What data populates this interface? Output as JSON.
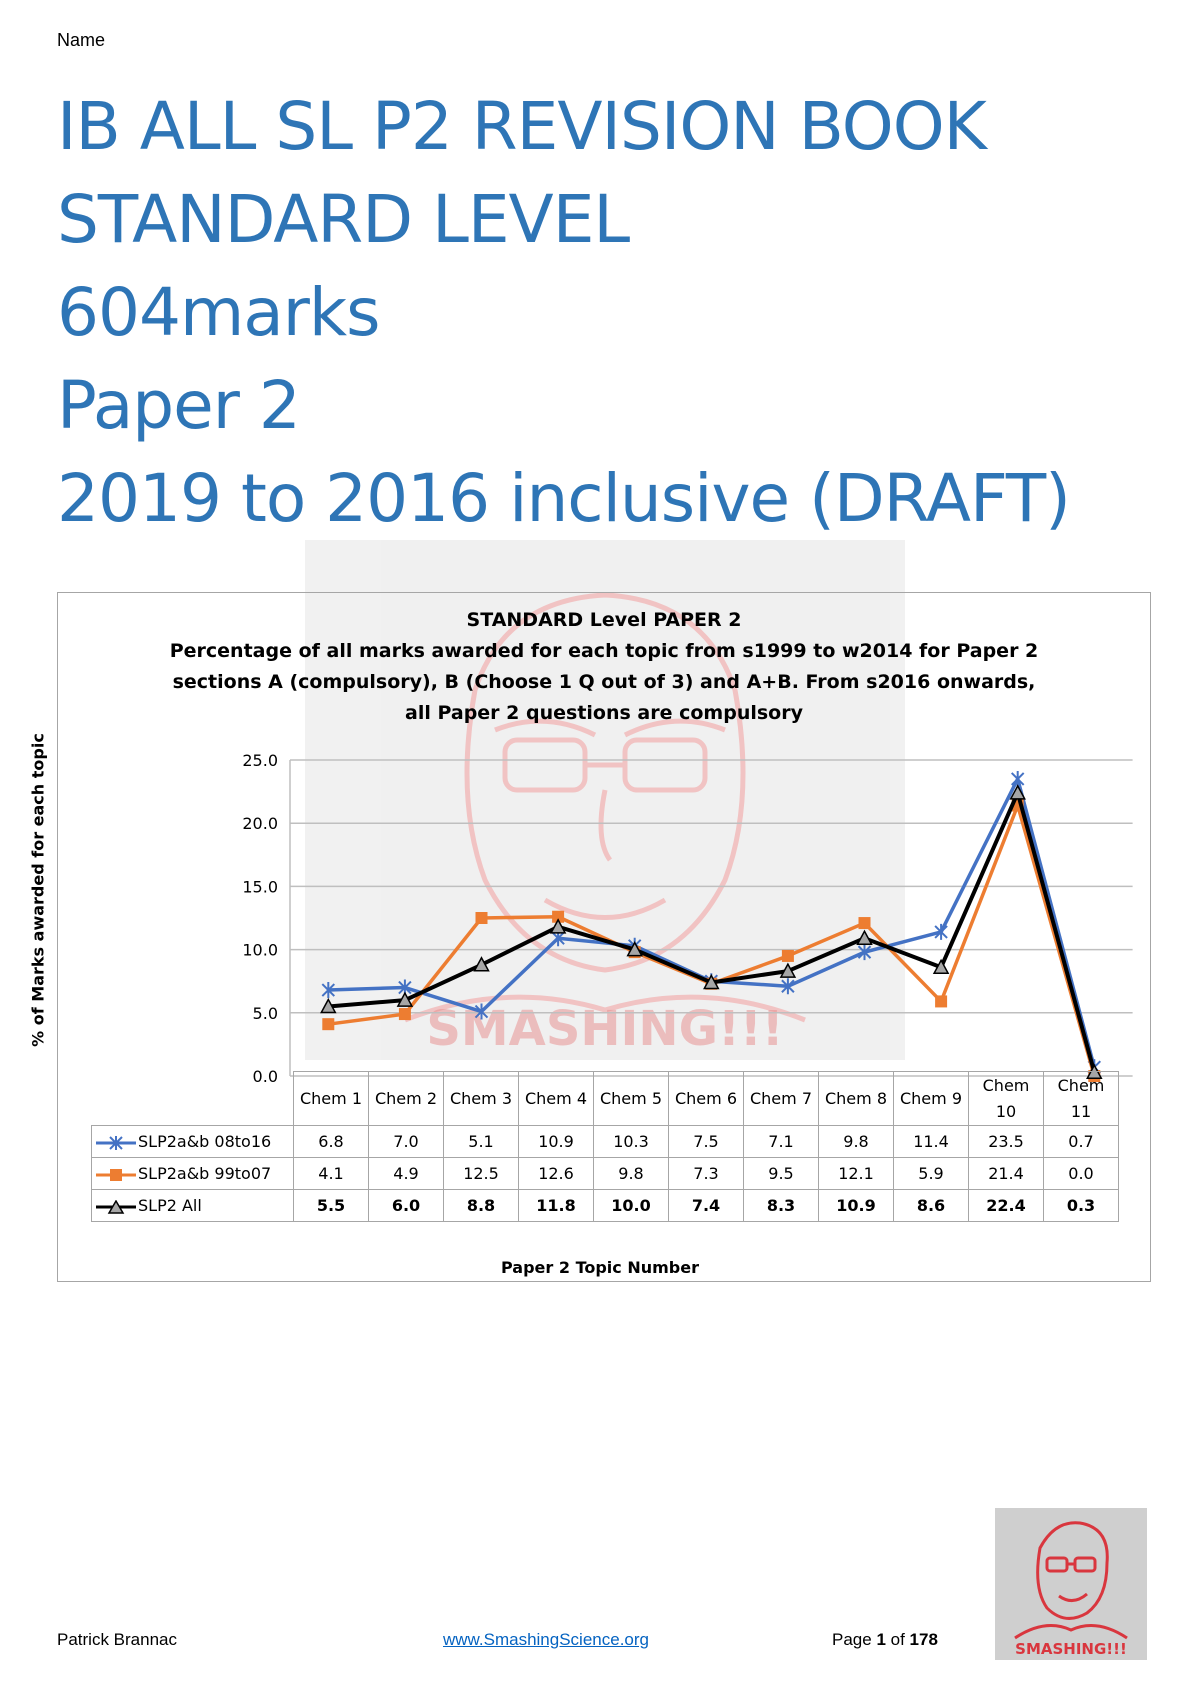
{
  "header": {
    "name_label": "Name"
  },
  "title_lines": [
    "IB ALL SL P2 REVISION BOOK",
    "STANDARD LEVEL",
    "604marks",
    "Paper 2",
    "2019 to 2016 inclusive (DRAFT)"
  ],
  "chart_data": {
    "type": "line",
    "title": "STANDARD Level PAPER 2",
    "subtitle_lines": [
      "Percentage of all marks awarded for each topic from s1999 to w2014 for Paper 2",
      "sections A (compulsory), B (Choose 1 Q out of 3) and A+B. From s2016 onwards,",
      "all Paper 2 questions are compulsory"
    ],
    "xlabel": "Paper 2 Topic Number",
    "ylabel": "% of Marks awarded for each topic",
    "ylim": [
      0,
      25
    ],
    "yticks": [
      "0.0",
      "5.0",
      "10.0",
      "15.0",
      "20.0",
      "25.0"
    ],
    "grid": true,
    "categories": [
      [
        "Chem 1"
      ],
      [
        "Chem 2"
      ],
      [
        "Chem 3"
      ],
      [
        "Chem 4"
      ],
      [
        "Chem 5"
      ],
      [
        "Chem 6"
      ],
      [
        "Chem 7"
      ],
      [
        "Chem 8"
      ],
      [
        "Chem 9"
      ],
      [
        "Chem",
        "10"
      ],
      [
        "Chem",
        "11"
      ]
    ],
    "series": [
      {
        "name": "SLP2a&b 08to16",
        "color": "#4472c4",
        "marker": "star",
        "values": [
          6.8,
          7.0,
          5.1,
          10.9,
          10.3,
          7.5,
          7.1,
          9.8,
          11.4,
          23.5,
          0.7
        ],
        "labels": [
          "6.8",
          "7.0",
          "5.1",
          "10.9",
          "10.3",
          "7.5",
          "7.1",
          "9.8",
          "11.4",
          "23.5",
          "0.7"
        ]
      },
      {
        "name": "SLP2a&b 99to07",
        "color": "#ed7d31",
        "marker": "square",
        "values": [
          4.1,
          4.9,
          12.5,
          12.6,
          9.8,
          7.3,
          9.5,
          12.1,
          5.9,
          21.4,
          0.0
        ],
        "labels": [
          "4.1",
          "4.9",
          "12.5",
          "12.6",
          "9.8",
          "7.3",
          "9.5",
          "12.1",
          "5.9",
          "21.4",
          "0.0"
        ]
      },
      {
        "name": "SLP2 All",
        "color": "#000000",
        "marker": "triangle",
        "values": [
          5.5,
          6.0,
          8.8,
          11.8,
          10.0,
          7.4,
          8.3,
          10.9,
          8.6,
          22.4,
          0.3
        ],
        "labels": [
          "5.5",
          "6.0",
          "8.8",
          "11.8",
          "10.0",
          "7.4",
          "8.3",
          "10.9",
          "8.6",
          "22.4",
          "0.3"
        ]
      }
    ]
  },
  "footer": {
    "author": "Patrick Brannac",
    "link": "www.SmashingScience.org",
    "page_prefix": "Page ",
    "page_number": "1",
    "page_of": " of ",
    "page_total": "178"
  },
  "logo": {
    "text": "SMASHING!!!",
    "color": "#d9363e"
  },
  "watermark": {
    "text": "SMASHING!!!",
    "color": "#e06666"
  }
}
